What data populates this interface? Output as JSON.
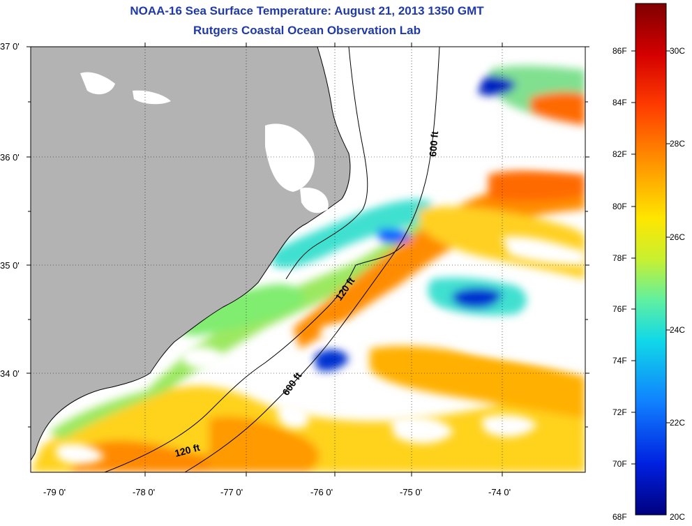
{
  "title": {
    "line1": "NOAA-16 Sea Surface Temperature:  August 21, 2013 1350 GMT",
    "line2": "Rutgers Coastal Ocean Observation Lab"
  },
  "axes": {
    "lat_labels": [
      "37 0'",
      "36 0'",
      "35 0'",
      "34 0'"
    ],
    "lon_labels": [
      "-79 0'",
      "-78 0'",
      "-77 0'",
      "-76 0'",
      "-75 0'",
      "-74 0'"
    ]
  },
  "contours": {
    "label_120": "120 ft",
    "label_600": "600 ft"
  },
  "colorbar": {
    "fahrenheit": [
      "86F",
      "84F",
      "82F",
      "80F",
      "78F",
      "76F",
      "74F",
      "72F",
      "70F",
      "68F"
    ],
    "celsius": [
      "30C",
      "28C",
      "26C",
      "24C",
      "22C",
      "20C"
    ],
    "gradient": [
      "#7f0000",
      "#d40000",
      "#ff3c00",
      "#ff9a00",
      "#ffe600",
      "#c8f030",
      "#60f0a0",
      "#10d8e8",
      "#1080ff",
      "#0020e0",
      "#00007f"
    ]
  },
  "colors": {
    "land": "#b3b3b3",
    "cloud": "#ffffff",
    "title": "#1f3aa8"
  }
}
